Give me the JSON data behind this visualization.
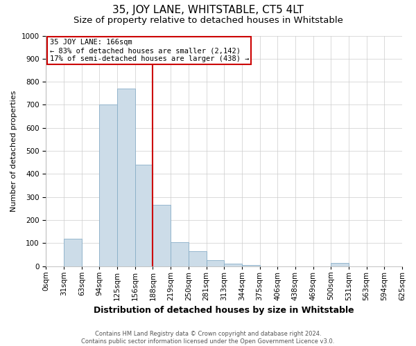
{
  "title": "35, JOY LANE, WHITSTABLE, CT5 4LT",
  "subtitle": "Size of property relative to detached houses in Whitstable",
  "xlabel": "Distribution of detached houses by size in Whitstable",
  "ylabel": "Number of detached properties",
  "footer_line1": "Contains HM Land Registry data © Crown copyright and database right 2024.",
  "footer_line2": "Contains public sector information licensed under the Open Government Licence v3.0.",
  "bin_labels": [
    "0sqm",
    "31sqm",
    "63sqm",
    "94sqm",
    "125sqm",
    "156sqm",
    "188sqm",
    "219sqm",
    "250sqm",
    "281sqm",
    "313sqm",
    "344sqm",
    "375sqm",
    "406sqm",
    "438sqm",
    "469sqm",
    "500sqm",
    "531sqm",
    "563sqm",
    "594sqm",
    "625sqm"
  ],
  "bar_heights": [
    0,
    120,
    0,
    700,
    770,
    440,
    265,
    105,
    65,
    25,
    10,
    5,
    0,
    0,
    0,
    0,
    15,
    0,
    0,
    0
  ],
  "bar_color": "#ccdce8",
  "bar_edge_color": "#88aec8",
  "vline_color": "#cc0000",
  "annotation_line1": "35 JOY LANE: 166sqm",
  "annotation_line2": "← 83% of detached houses are smaller (2,142)",
  "annotation_line3": "17% of semi-detached houses are larger (438) →",
  "annotation_box_color": "#ffffff",
  "annotation_box_edge": "#cc0000",
  "ylim": [
    0,
    1000
  ],
  "yticks": [
    0,
    100,
    200,
    300,
    400,
    500,
    600,
    700,
    800,
    900,
    1000
  ],
  "grid_color": "#cccccc",
  "bg_color": "#ffffff",
  "title_fontsize": 11,
  "subtitle_fontsize": 9.5,
  "tick_fontsize": 7.5,
  "ylabel_fontsize": 8,
  "xlabel_fontsize": 9,
  "footer_fontsize": 6,
  "vline_bin": 6
}
